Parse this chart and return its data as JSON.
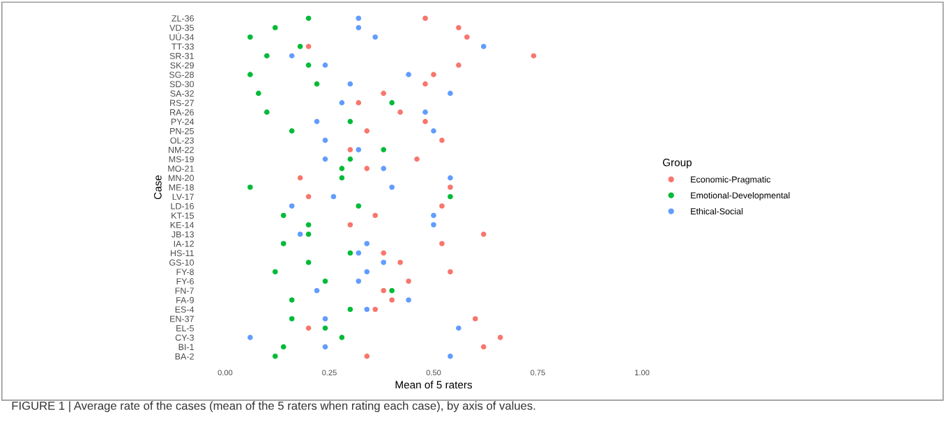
{
  "chart_data": {
    "type": "scatter",
    "orientation": "horizontal",
    "xlabel": "Mean of 5 raters",
    "ylabel": "Case",
    "legend_title": "Group",
    "legend": "right",
    "grid": false,
    "marker": "circle",
    "categories": [
      "ZL-36",
      "VD-35",
      "UÚ-34",
      "TT-33",
      "SR-31",
      "SK-29",
      "SG-28",
      "SD-30",
      "SA-32",
      "RS-27",
      "RA-26",
      "PY-24",
      "PN-25",
      "OL-23",
      "NM-22",
      "MS-19",
      "MO-21",
      "MN-20",
      "ME-18",
      "LV-17",
      "LD-16",
      "KT-15",
      "KE-14",
      "JB-13",
      "IA-12",
      "HS-11",
      "GS-10",
      "FY-8",
      "FY-6",
      "FN-7",
      "FA-9",
      "ES-4",
      "EN-37",
      "EL-5",
      "CY-3",
      "BI-1",
      "BA-2"
    ],
    "xlim": [
      0,
      1
    ],
    "xticks": [
      {
        "value": 0,
        "label": "0.00"
      },
      {
        "value": 0.25,
        "label": "0.25"
      },
      {
        "value": 0.5,
        "label": "0.50"
      },
      {
        "value": 0.75,
        "label": "0.75"
      },
      {
        "value": 1,
        "label": "1.00"
      }
    ],
    "series": [
      {
        "name": "Economic-Pragmatic",
        "color": "#f8766d",
        "values": [
          0.48,
          0.56,
          0.58,
          0.2,
          0.74,
          0.56,
          0.5,
          0.48,
          0.38,
          0.32,
          0.42,
          0.48,
          0.34,
          0.52,
          0.3,
          0.46,
          0.34,
          0.18,
          0.54,
          0.2,
          0.52,
          0.36,
          0.3,
          0.62,
          0.52,
          0.38,
          0.42,
          0.54,
          0.44,
          0.38,
          0.4,
          0.36,
          0.6,
          0.2,
          0.66,
          0.62,
          0.34
        ]
      },
      {
        "name": "Emotional-Developmental",
        "color": "#00ba38",
        "values": [
          0.2,
          0.12,
          0.06,
          0.18,
          0.1,
          0.2,
          0.06,
          0.22,
          0.08,
          0.4,
          0.1,
          0.3,
          0.16,
          null,
          0.38,
          0.3,
          0.28,
          0.28,
          0.06,
          0.54,
          0.32,
          0.14,
          0.2,
          0.2,
          0.14,
          0.3,
          0.2,
          0.12,
          0.24,
          0.4,
          0.16,
          0.3,
          0.16,
          0.24,
          0.28,
          0.14,
          0.12
        ]
      },
      {
        "name": "Ethical-Social",
        "color": "#619cff",
        "values": [
          0.32,
          0.32,
          0.36,
          0.62,
          0.16,
          0.24,
          0.44,
          0.3,
          0.54,
          0.28,
          0.48,
          0.22,
          0.5,
          0.24,
          0.32,
          0.24,
          0.38,
          0.54,
          0.4,
          0.26,
          0.16,
          0.5,
          0.5,
          0.18,
          0.34,
          0.32,
          0.38,
          0.34,
          0.32,
          0.22,
          0.44,
          0.34,
          0.24,
          0.56,
          0.06,
          0.24,
          0.54
        ]
      }
    ],
    "annotations": [
      "FIGURE 1 | Average rate of the cases (mean of the 5 raters when rating each case), by axis of values."
    ]
  }
}
